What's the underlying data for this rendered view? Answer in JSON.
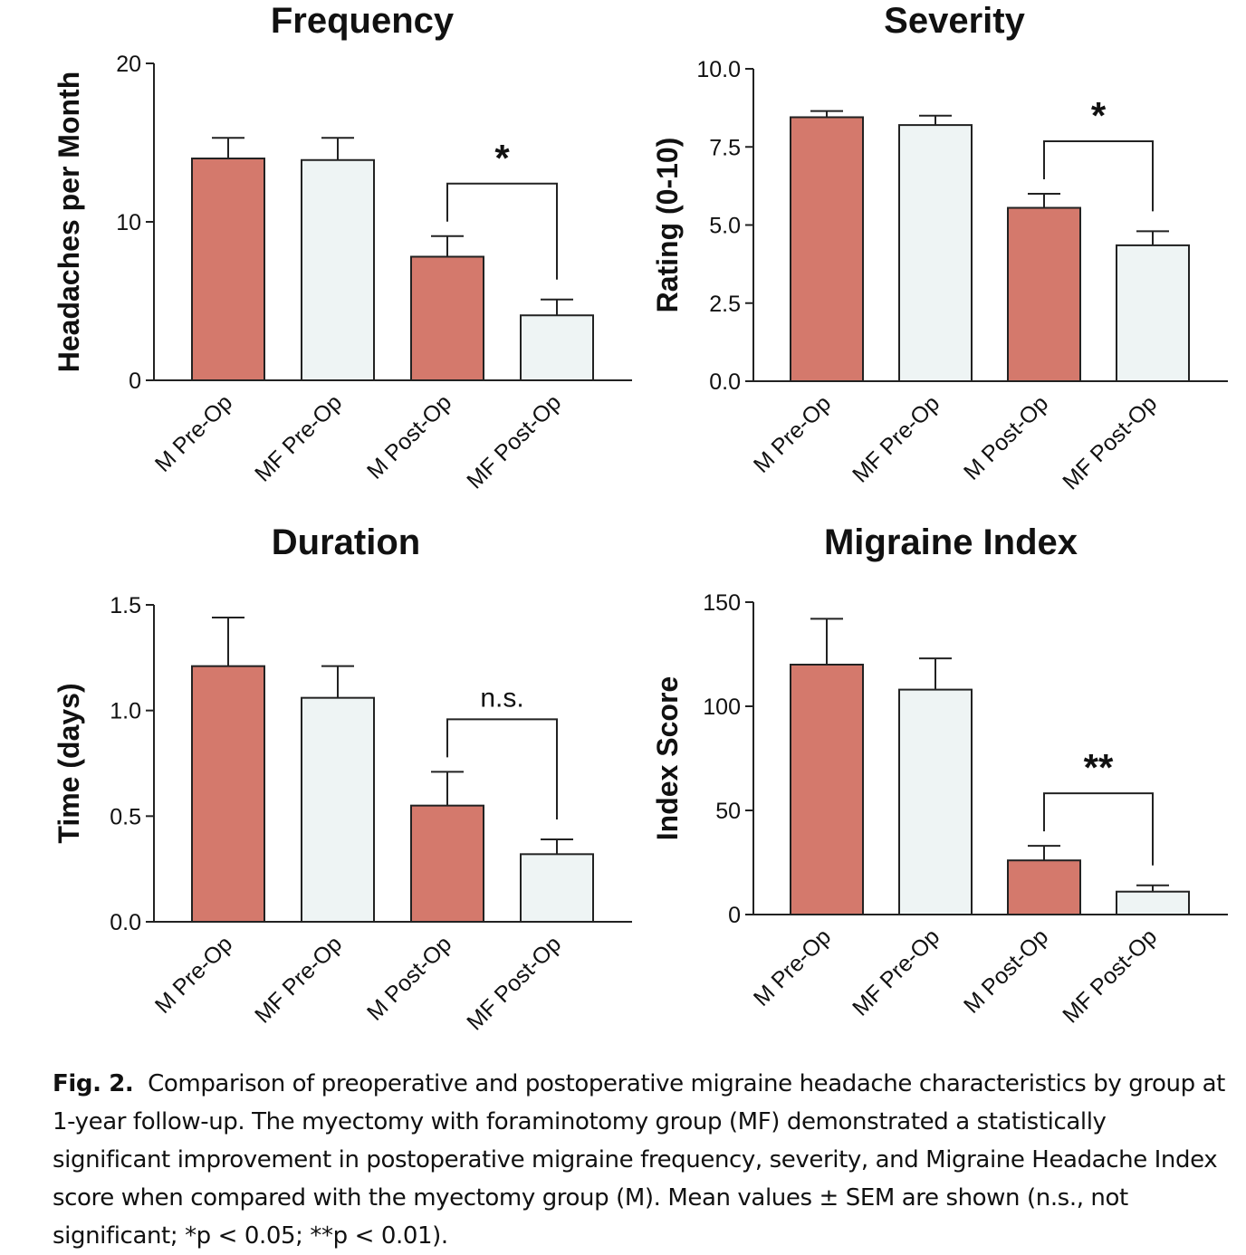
{
  "chart_data": [
    {
      "type": "bar",
      "title": "Frequency",
      "ylabel": "Headaches per Month",
      "categories": [
        "M Pre-Op",
        "MF Pre-Op",
        "M Post-Op",
        "MF Post-Op"
      ],
      "values": [
        14.0,
        13.9,
        7.8,
        4.1
      ],
      "errors": [
        1.3,
        1.4,
        1.3,
        1.0
      ],
      "ylim": [
        0,
        20
      ],
      "yticks": [
        0,
        10,
        20
      ],
      "ytick_labels": [
        "0",
        "10",
        "20"
      ],
      "significance": {
        "from": 2,
        "to": 3,
        "label": "*"
      },
      "colors": [
        "#d4796c",
        "#eef4f4",
        "#d4796c",
        "#eef4f4"
      ]
    },
    {
      "type": "bar",
      "title": "Severity",
      "ylabel": "Rating (0-10)",
      "categories": [
        "M Pre-Op",
        "MF Pre-Op",
        "M Post-Op",
        "MF Post-Op"
      ],
      "values": [
        8.45,
        8.2,
        5.55,
        4.35
      ],
      "errors": [
        0.2,
        0.3,
        0.45,
        0.45
      ],
      "ylim": [
        0,
        10
      ],
      "yticks": [
        0,
        2.5,
        5,
        7.5,
        10
      ],
      "ytick_labels": [
        "0.0",
        "2.5",
        "5.0",
        "7.5",
        "10.0"
      ],
      "significance": {
        "from": 2,
        "to": 3,
        "label": "*"
      },
      "colors": [
        "#d4796c",
        "#eef4f4",
        "#d4796c",
        "#eef4f4"
      ]
    },
    {
      "type": "bar",
      "title": "Duration",
      "ylabel": "Time (days)",
      "categories": [
        "M Pre-Op",
        "MF Pre-Op",
        "M Post-Op",
        "MF Post-Op"
      ],
      "values": [
        1.21,
        1.06,
        0.55,
        0.32
      ],
      "errors": [
        0.23,
        0.15,
        0.16,
        0.07
      ],
      "ylim": [
        0,
        1.5
      ],
      "yticks": [
        0,
        0.5,
        1.0,
        1.5
      ],
      "ytick_labels": [
        "0.0",
        "0.5",
        "1.0",
        "1.5"
      ],
      "significance": {
        "from": 2,
        "to": 3,
        "label": "n.s."
      },
      "colors": [
        "#d4796c",
        "#eef4f4",
        "#d4796c",
        "#eef4f4"
      ]
    },
    {
      "type": "bar",
      "title": "Migraine Index",
      "ylabel": "Index Score",
      "categories": [
        "M Pre-Op",
        "MF Pre-Op",
        "M Post-Op",
        "MF Post-Op"
      ],
      "values": [
        120,
        108,
        26,
        11
      ],
      "errors": [
        22,
        15,
        7,
        3
      ],
      "ylim": [
        0,
        150
      ],
      "yticks": [
        0,
        50,
        100,
        150
      ],
      "ytick_labels": [
        "0",
        "50",
        "100",
        "150"
      ],
      "significance": {
        "from": 2,
        "to": 3,
        "label": "**"
      },
      "colors": [
        "#d4796c",
        "#eef4f4",
        "#d4796c",
        "#eef4f4"
      ]
    }
  ],
  "caption": {
    "label": "Fig. 2.",
    "text": "Comparison of preoperative and postoperative migraine headache characteristics by group at 1-year follow-up. The myectomy with foraminotomy group (MF) demonstrated a statistically significant improvement in postoperative migraine frequency, severity, and Migraine Headache Index score when compared with the myectomy group (M). Mean values ± SEM are shown (n.s., not significant; *p < 0.05; **p < 0.01)."
  }
}
